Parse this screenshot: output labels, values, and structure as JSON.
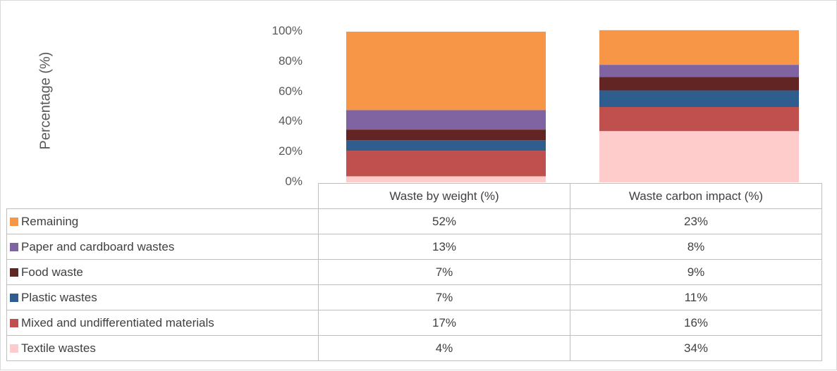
{
  "chart_data": {
    "type": "bar",
    "stacked": true,
    "categories": [
      "Waste by weight (%)",
      "Waste carbon impact (%)"
    ],
    "ylabel": "Percentage (%)",
    "yticks": [
      "0%",
      "20%",
      "40%",
      "60%",
      "80%",
      "100%"
    ],
    "ylim": [
      0,
      100
    ],
    "grid": false,
    "legend_position": "data table, left",
    "series": [
      {
        "name": "Textile wastes",
        "values": [
          4,
          34
        ],
        "labels": [
          "4%",
          "34%"
        ],
        "color": "#ffcccc"
      },
      {
        "name": "Mixed and undifferentiated materials",
        "values": [
          17,
          16
        ],
        "labels": [
          "17%",
          "16%"
        ],
        "color": "#c0504d"
      },
      {
        "name": "Plastic wastes",
        "values": [
          7,
          11
        ],
        "labels": [
          "7%",
          "11%"
        ],
        "color": "#2f5e8e"
      },
      {
        "name": "Food waste",
        "values": [
          7,
          9
        ],
        "labels": [
          "7%",
          "9%"
        ],
        "color": "#632523"
      },
      {
        "name": "Paper and cardboard wastes",
        "values": [
          13,
          8
        ],
        "labels": [
          "13%",
          "8%"
        ],
        "color": "#8064a2"
      },
      {
        "name": "Remaining",
        "values": [
          52,
          23
        ],
        "labels": [
          "52%",
          "23%"
        ],
        "color": "#f79646"
      }
    ]
  }
}
